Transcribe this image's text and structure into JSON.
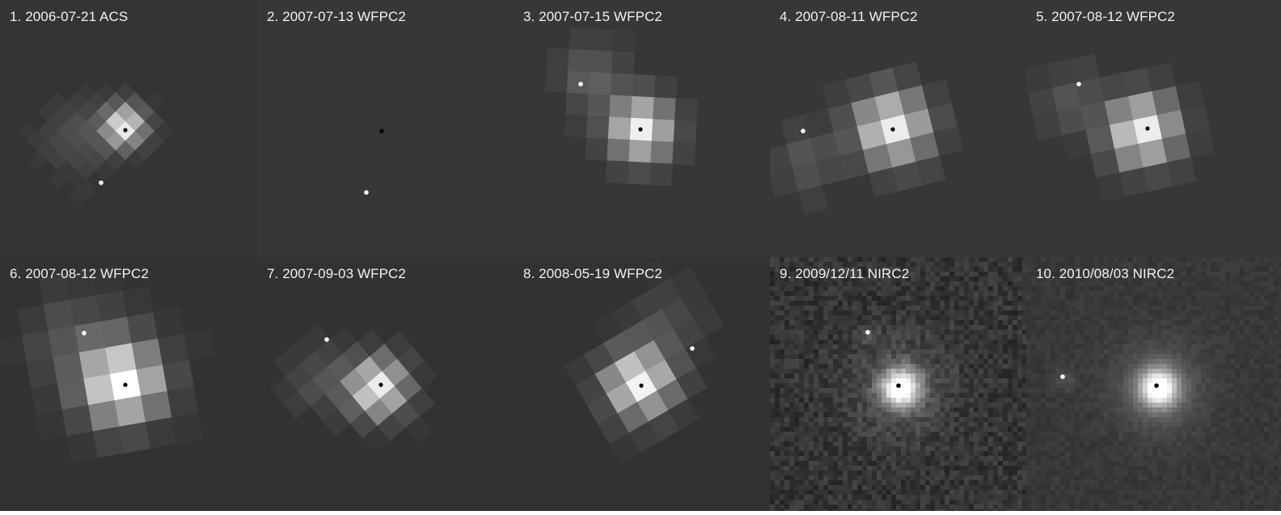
{
  "panels": [
    {
      "label": "1. 2006-07-21 ACS",
      "instrument": "ACS",
      "kind": "pixelated"
    },
    {
      "label": "2. 2007-07-13 WFPC2",
      "instrument": "WFPC2",
      "kind": "pixelated"
    },
    {
      "label": "3. 2007-07-15 WFPC2",
      "instrument": "WFPC2",
      "kind": "pixelated"
    },
    {
      "label": "4. 2007-08-11 WFPC2",
      "instrument": "WFPC2",
      "kind": "pixelated"
    },
    {
      "label": "5. 2007-08-12 WFPC2",
      "instrument": "WFPC2",
      "kind": "pixelated"
    },
    {
      "label": "6. 2007-08-12 WFPC2",
      "instrument": "WFPC2",
      "kind": "pixelated"
    },
    {
      "label": "7. 2007-09-03 WFPC2",
      "instrument": "WFPC2",
      "kind": "pixelated"
    },
    {
      "label": "8. 2008-05-19 WFPC2",
      "instrument": "WFPC2",
      "kind": "pixelated"
    },
    {
      "label": "9. 2009/12/11 NIRC2",
      "instrument": "NIRC2",
      "kind": "adaptive-optics"
    },
    {
      "label": "10. 2010/08/03 NIRC2",
      "instrument": "NIRC2",
      "kind": "adaptive-optics"
    }
  ],
  "colors": {
    "background": "#373737",
    "label_text": "#f2f2f2",
    "primary_marker": "#000000",
    "secondary_marker": "#ffffff"
  }
}
